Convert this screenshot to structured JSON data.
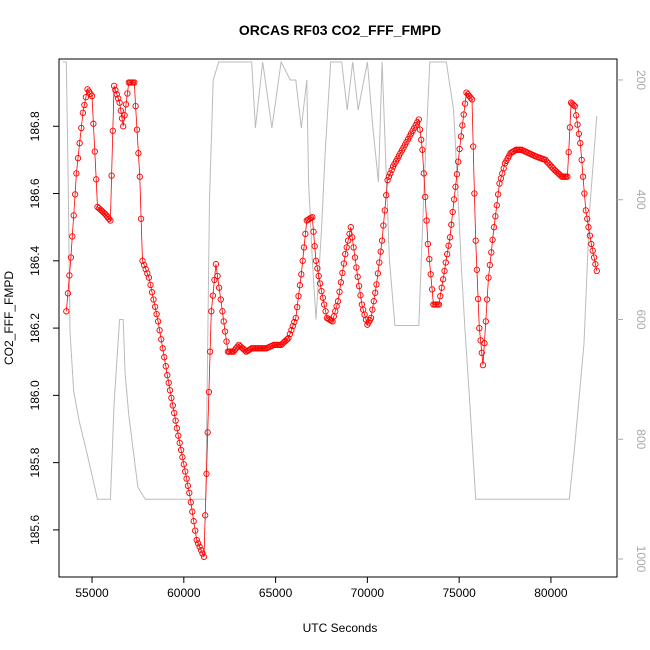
{
  "chart_data": {
    "type": "scatter",
    "title": "ORCAS RF03 CO2_FFF_FMPD",
    "xlabel": "UTC Seconds",
    "ylabel": "CO2_FFF_FMPD",
    "xlim": [
      53200,
      83600
    ],
    "ylim": [
      185.46,
      187.0
    ],
    "xticks": [
      "55000",
      "60000",
      "65000",
      "70000",
      "75000",
      "80000"
    ],
    "yticks": [
      "185.6",
      "185.8",
      "186.0",
      "186.2",
      "186.4",
      "186.6",
      "186.8"
    ],
    "y2lim": [
      1030,
      165
    ],
    "y2ticks": [
      "200",
      "400",
      "600",
      "800",
      "1000"
    ],
    "grid": false,
    "series": [
      {
        "role": "primary",
        "color": "#ff0000",
        "marker": "open-circle",
        "x": [
          53600,
          53850,
          54150,
          54500,
          54750,
          55000,
          55300,
          55700,
          56000,
          56200,
          56500,
          56700,
          57000,
          57300,
          57600,
          57750,
          58100,
          58600,
          59100,
          59700,
          60300,
          60700,
          61100,
          61300,
          61500,
          61750,
          62100,
          62400,
          62700,
          63000,
          63400,
          63700,
          64100,
          64500,
          64900,
          65300,
          65700,
          66100,
          66400,
          66700,
          67000,
          67200,
          67500,
          67800,
          68100,
          68400,
          68800,
          69100,
          69400,
          69700,
          70000,
          70200,
          70500,
          70800,
          71100,
          71400,
          71800,
          72300,
          72800,
          73000,
          73300,
          73600,
          73900,
          74200,
          74500,
          74800,
          75100,
          75400,
          75700,
          75900,
          76100,
          76300,
          76600,
          76900,
          77200,
          77500,
          77800,
          78100,
          78400,
          78800,
          79200,
          79700,
          80200,
          80600,
          80900,
          81100,
          81300,
          81600,
          81900,
          82200,
          82500
        ],
        "y": [
          186.25,
          186.41,
          186.66,
          186.84,
          186.91,
          186.89,
          186.56,
          186.54,
          186.52,
          186.92,
          186.87,
          186.8,
          186.93,
          186.93,
          186.65,
          186.4,
          186.35,
          186.22,
          186.06,
          185.88,
          185.71,
          185.57,
          185.52,
          185.89,
          186.25,
          186.39,
          186.25,
          186.13,
          186.13,
          186.15,
          186.13,
          186.14,
          186.14,
          186.14,
          186.15,
          186.15,
          186.17,
          186.23,
          186.36,
          186.52,
          186.53,
          186.4,
          186.31,
          186.23,
          186.22,
          186.28,
          186.42,
          186.5,
          186.38,
          186.27,
          186.21,
          186.23,
          186.33,
          186.46,
          186.64,
          186.68,
          186.72,
          186.77,
          186.82,
          186.73,
          186.45,
          186.27,
          186.27,
          186.37,
          186.47,
          186.62,
          186.77,
          186.9,
          186.88,
          186.46,
          186.2,
          186.09,
          186.35,
          186.5,
          186.63,
          186.69,
          186.72,
          186.73,
          186.73,
          186.72,
          186.71,
          186.7,
          186.67,
          186.65,
          186.65,
          186.87,
          186.86,
          186.75,
          186.55,
          186.45,
          186.37
        ]
      },
      {
        "role": "secondary",
        "color": "#bbbbbb",
        "x": [
          53400,
          53600,
          53700,
          53800,
          54000,
          54300,
          54700,
          55000,
          55300,
          55600,
          56000,
          56200,
          56500,
          56700,
          56800,
          57000,
          57500,
          57900,
          60000,
          61200,
          61400,
          61600,
          61900,
          62300,
          62800,
          63200,
          63500,
          63700,
          63900,
          64300,
          64800,
          65300,
          65800,
          66100,
          66400,
          66700,
          66800,
          67000,
          67200,
          67500,
          67700,
          68000,
          68300,
          68600,
          68900,
          69200,
          69500,
          70000,
          70300,
          70600,
          70800,
          71200,
          71500,
          71900,
          72300,
          72500,
          72800,
          73100,
          73400,
          73600,
          73800,
          74100,
          74300,
          74700,
          74900,
          75100,
          75300,
          75600,
          75900,
          76000,
          76300,
          77000,
          80000,
          80500,
          81000,
          81300,
          81800,
          82100,
          82500
        ],
        "y": [
          170,
          170,
          370,
          620,
          720,
          770,
          820,
          860,
          900,
          900,
          900,
          740,
          600,
          600,
          690,
          760,
          880,
          900,
          900,
          900,
          400,
          200,
          170,
          170,
          170,
          170,
          170,
          170,
          280,
          170,
          280,
          170,
          200,
          200,
          280,
          200,
          370,
          500,
          600,
          450,
          320,
          170,
          170,
          170,
          250,
          170,
          250,
          170,
          280,
          370,
          170,
          500,
          610,
          610,
          610,
          610,
          610,
          370,
          170,
          170,
          170,
          170,
          170,
          250,
          370,
          500,
          610,
          750,
          900,
          900,
          900,
          900,
          900,
          900,
          900,
          810,
          640,
          420,
          260
        ]
      }
    ]
  }
}
